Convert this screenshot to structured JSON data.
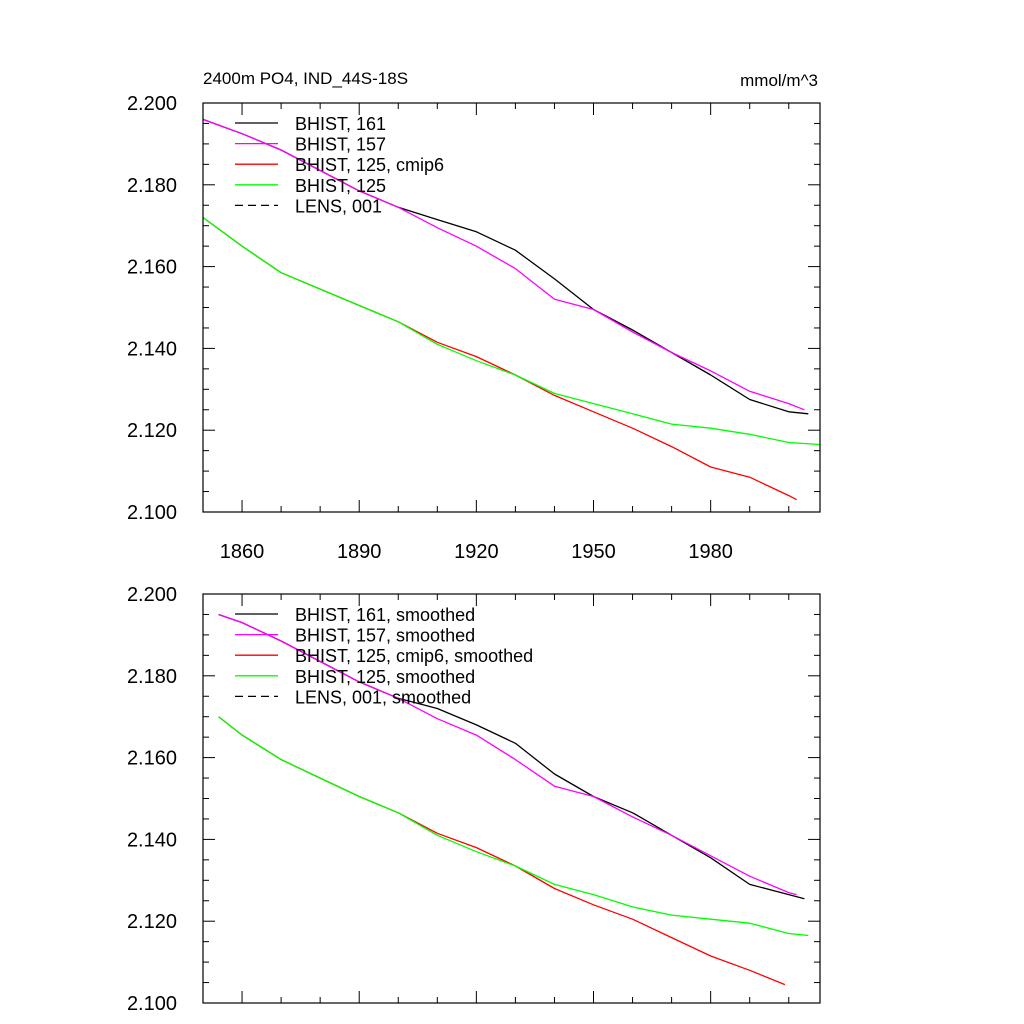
{
  "chart_data": [
    {
      "type": "line",
      "title": "2400m PO4, IND_44S-18S",
      "units": "mmol/m^3",
      "xlabel": "",
      "ylabel": "",
      "xlim": [
        1850,
        2008
      ],
      "ylim": [
        2.1,
        2.2
      ],
      "x_ticks": [
        1860,
        1890,
        1920,
        1950,
        1980
      ],
      "x_tick_labels": [
        "1860",
        "1890",
        "1920",
        "1950",
        "1980"
      ],
      "y_ticks": [
        2.1,
        2.12,
        2.14,
        2.16,
        2.18,
        2.2
      ],
      "y_tick_labels": [
        "2.100",
        "2.120",
        "2.140",
        "2.160",
        "2.180",
        "2.200"
      ],
      "legend_position": "top-left",
      "series": [
        {
          "name": "BHIST, 161",
          "color": "#000000",
          "dash": "solid",
          "x": [
            1850,
            1860,
            1870,
            1880,
            1890,
            1900,
            1910,
            1920,
            1930,
            1940,
            1950,
            1960,
            1970,
            1980,
            1990,
            2000,
            2005
          ],
          "y": [
            2.196,
            2.1925,
            2.1885,
            2.1835,
            2.1785,
            2.1745,
            2.1715,
            2.1685,
            2.164,
            2.157,
            2.1495,
            2.1445,
            2.139,
            2.1335,
            2.1275,
            2.1245,
            2.124
          ]
        },
        {
          "name": "BHIST, 157",
          "color": "#ff00ff",
          "dash": "solid",
          "x": [
            1850,
            1860,
            1870,
            1880,
            1890,
            1900,
            1910,
            1920,
            1930,
            1940,
            1950,
            1960,
            1970,
            1980,
            1990,
            2000,
            2004
          ],
          "y": [
            2.196,
            2.1925,
            2.1885,
            2.1835,
            2.1785,
            2.1745,
            2.1695,
            2.165,
            2.1595,
            2.152,
            2.1495,
            2.144,
            2.139,
            2.1345,
            2.1295,
            2.1265,
            2.125
          ]
        },
        {
          "name": "BHIST, 125, cmip6",
          "color": "#ff0000",
          "dash": "solid",
          "x": [
            1850,
            1860,
            1870,
            1880,
            1890,
            1900,
            1910,
            1920,
            1930,
            1940,
            1950,
            1960,
            1970,
            1980,
            1990,
            2000,
            2002
          ],
          "y": [
            2.172,
            2.165,
            2.1585,
            2.1545,
            2.1505,
            2.1465,
            2.1415,
            2.138,
            2.1335,
            2.1285,
            2.1245,
            2.1205,
            2.116,
            2.111,
            2.1085,
            2.104,
            2.103
          ]
        },
        {
          "name": "BHIST, 125",
          "color": "#00ff00",
          "dash": "solid",
          "x": [
            1850,
            1860,
            1870,
            1880,
            1890,
            1900,
            1910,
            1920,
            1930,
            1940,
            1950,
            1960,
            1970,
            1980,
            1990,
            2000,
            2008
          ],
          "y": [
            2.172,
            2.165,
            2.1585,
            2.1545,
            2.1505,
            2.1465,
            2.141,
            2.137,
            2.1335,
            2.129,
            2.1265,
            2.124,
            2.1215,
            2.1205,
            2.119,
            2.117,
            2.1165
          ]
        },
        {
          "name": "LENS, 001",
          "color": "#000000",
          "dash": "dashed",
          "x": [],
          "y": []
        }
      ]
    },
    {
      "type": "line",
      "title": "",
      "units": "",
      "xlabel": "",
      "ylabel": "",
      "xlim": [
        1850,
        2008
      ],
      "ylim": [
        2.1,
        2.2
      ],
      "x_ticks": [
        1860,
        1890,
        1920,
        1950,
        1980
      ],
      "x_tick_labels": [],
      "y_ticks": [
        2.1,
        2.12,
        2.14,
        2.16,
        2.18,
        2.2
      ],
      "y_tick_labels": [
        "2.100",
        "2.120",
        "2.140",
        "2.160",
        "2.180",
        "2.200"
      ],
      "legend_position": "top-left",
      "series": [
        {
          "name": "BHIST, 161, smoothed",
          "color": "#000000",
          "dash": "solid",
          "x": [
            1854,
            1860,
            1870,
            1880,
            1890,
            1900,
            1910,
            1920,
            1930,
            1940,
            1950,
            1960,
            1970,
            1980,
            1990,
            2000,
            2004
          ],
          "y": [
            2.195,
            2.193,
            2.1885,
            2.1835,
            2.1785,
            2.1745,
            2.172,
            2.168,
            2.1635,
            2.156,
            2.1505,
            2.1465,
            2.141,
            2.1355,
            2.129,
            2.1265,
            2.1255
          ]
        },
        {
          "name": "BHIST, 157, smoothed",
          "color": "#ff00ff",
          "dash": "solid",
          "x": [
            1854,
            1860,
            1870,
            1880,
            1890,
            1900,
            1910,
            1920,
            1930,
            1940,
            1950,
            1960,
            1970,
            1980,
            1990,
            2000,
            2002
          ],
          "y": [
            2.195,
            2.193,
            2.1885,
            2.1835,
            2.1785,
            2.1745,
            2.1695,
            2.1655,
            2.1595,
            2.153,
            2.1505,
            2.1455,
            2.141,
            2.136,
            2.131,
            2.127,
            2.1265
          ]
        },
        {
          "name": "BHIST, 125, cmip6, smoothed",
          "color": "#ff0000",
          "dash": "solid",
          "x": [
            1854,
            1860,
            1870,
            1880,
            1890,
            1900,
            1910,
            1920,
            1930,
            1940,
            1950,
            1960,
            1970,
            1980,
            1990,
            1999
          ],
          "y": [
            2.17,
            2.1655,
            2.1595,
            2.155,
            2.1505,
            2.1465,
            2.1415,
            2.138,
            2.1335,
            2.128,
            2.124,
            2.1205,
            2.116,
            2.1115,
            2.108,
            2.1045
          ]
        },
        {
          "name": "BHIST, 125, smoothed",
          "color": "#00ff00",
          "dash": "solid",
          "x": [
            1854,
            1860,
            1870,
            1880,
            1890,
            1900,
            1910,
            1920,
            1930,
            1940,
            1950,
            1960,
            1970,
            1980,
            1990,
            2000,
            2005
          ],
          "y": [
            2.17,
            2.1655,
            2.1595,
            2.155,
            2.1505,
            2.1465,
            2.141,
            2.137,
            2.1335,
            2.129,
            2.1265,
            2.1235,
            2.1215,
            2.1205,
            2.1195,
            2.117,
            2.1165
          ]
        },
        {
          "name": "LENS, 001, smoothed",
          "color": "#000000",
          "dash": "dashed",
          "x": [],
          "y": []
        }
      ]
    }
  ]
}
